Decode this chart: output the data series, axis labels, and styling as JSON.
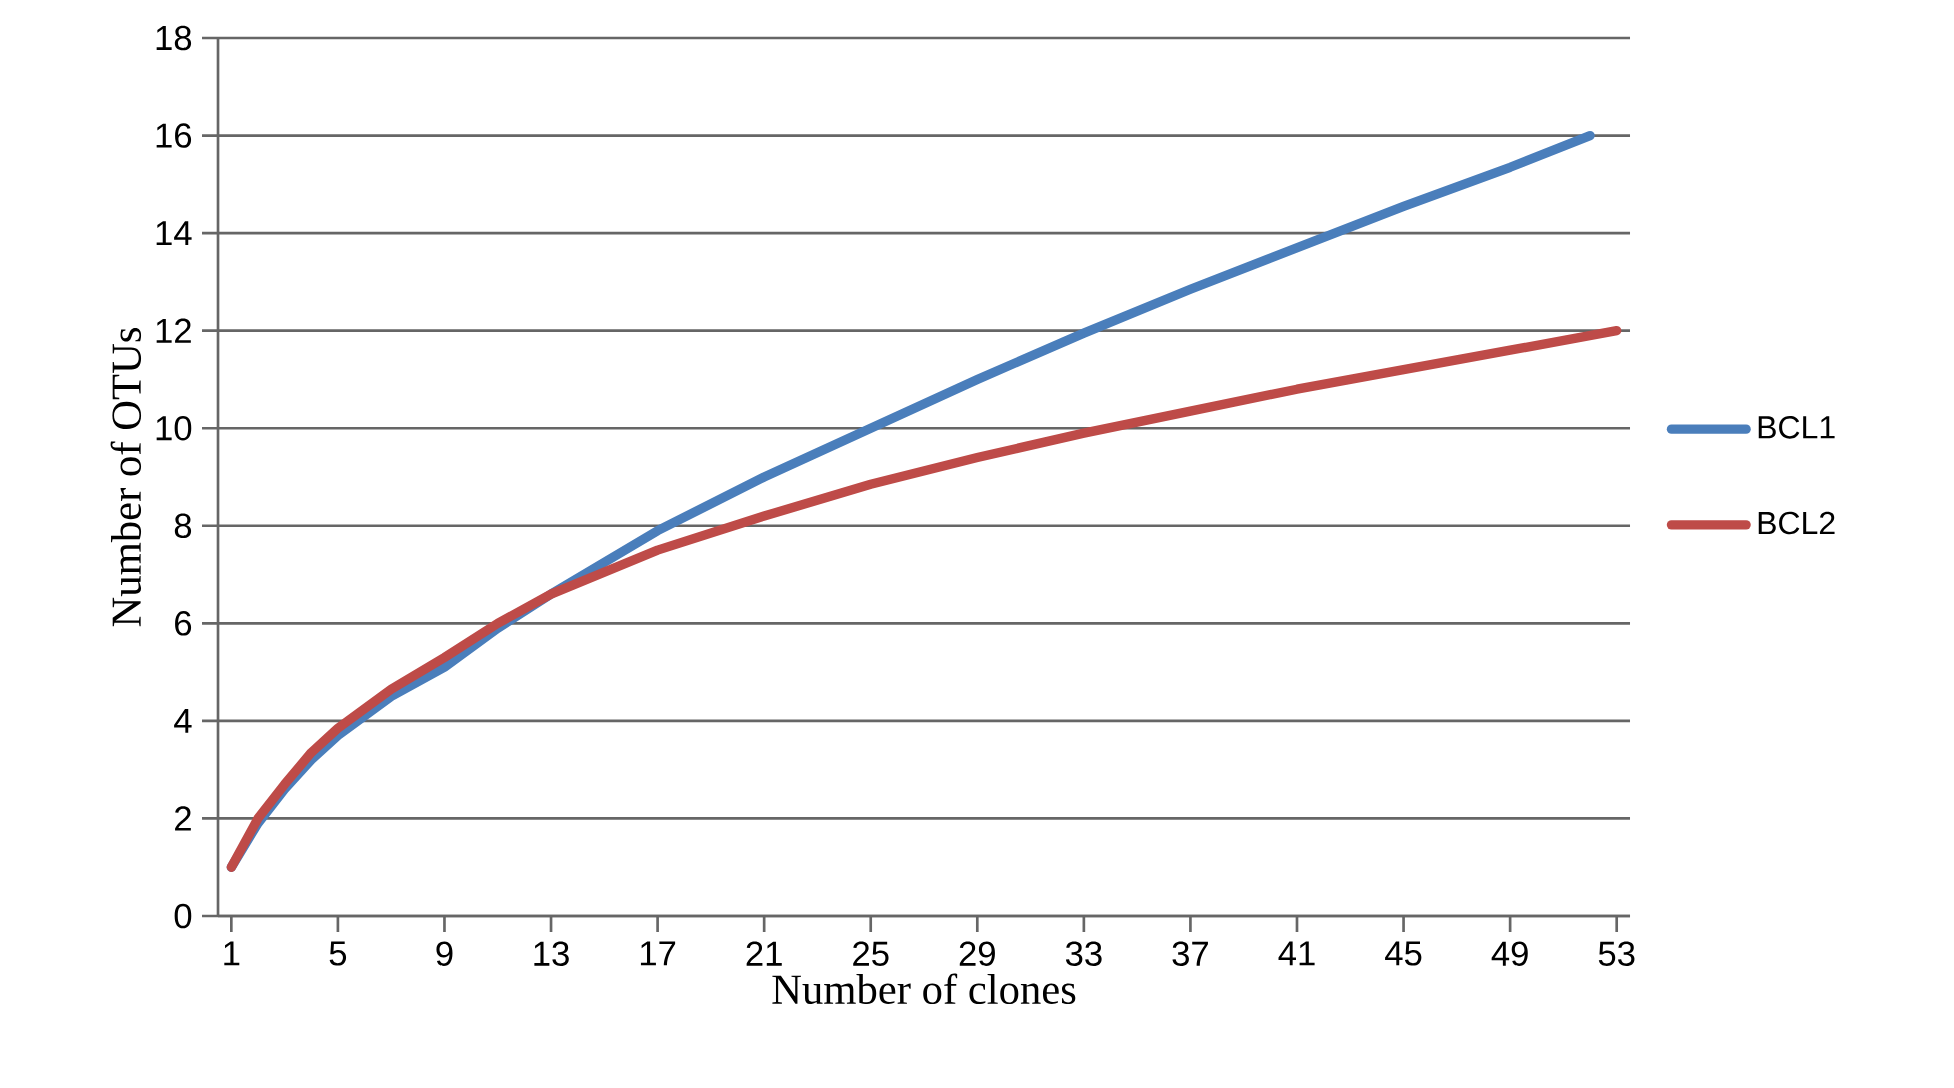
{
  "chart_data": {
    "type": "line",
    "xlabel": "Number of clones",
    "ylabel": "Number of OTUs",
    "xlim": [
      0.5,
      53.5
    ],
    "xticks": [
      1,
      5,
      9,
      13,
      17,
      21,
      25,
      29,
      33,
      37,
      41,
      45,
      49,
      53
    ],
    "ylim": [
      0,
      18
    ],
    "yticks": [
      0,
      2,
      4,
      6,
      8,
      10,
      12,
      14,
      16,
      18
    ],
    "grid": "y",
    "legend": "right",
    "marker": "none",
    "series": [
      {
        "name": "BCL1",
        "color": "#4a7ebb",
        "x": [
          1,
          2,
          3,
          4,
          5,
          7,
          9,
          11,
          13,
          17,
          21,
          25,
          29,
          33,
          37,
          41,
          45,
          49,
          52
        ],
        "values": [
          1,
          1.9,
          2.6,
          3.2,
          3.7,
          4.5,
          5.1,
          5.9,
          6.6,
          7.9,
          9.0,
          10.0,
          11.0,
          11.95,
          12.85,
          13.7,
          14.55,
          15.35,
          16
        ]
      },
      {
        "name": "BCL2",
        "color": "#be4b48",
        "x": [
          1,
          2,
          3,
          4,
          5,
          7,
          9,
          11,
          13,
          17,
          21,
          25,
          29,
          33,
          37,
          41,
          45,
          49,
          53
        ],
        "values": [
          1,
          2.0,
          2.7,
          3.35,
          3.85,
          4.65,
          5.3,
          6.0,
          6.6,
          7.5,
          8.2,
          8.85,
          9.4,
          9.9,
          10.35,
          10.8,
          11.2,
          11.6,
          12
        ]
      }
    ]
  }
}
